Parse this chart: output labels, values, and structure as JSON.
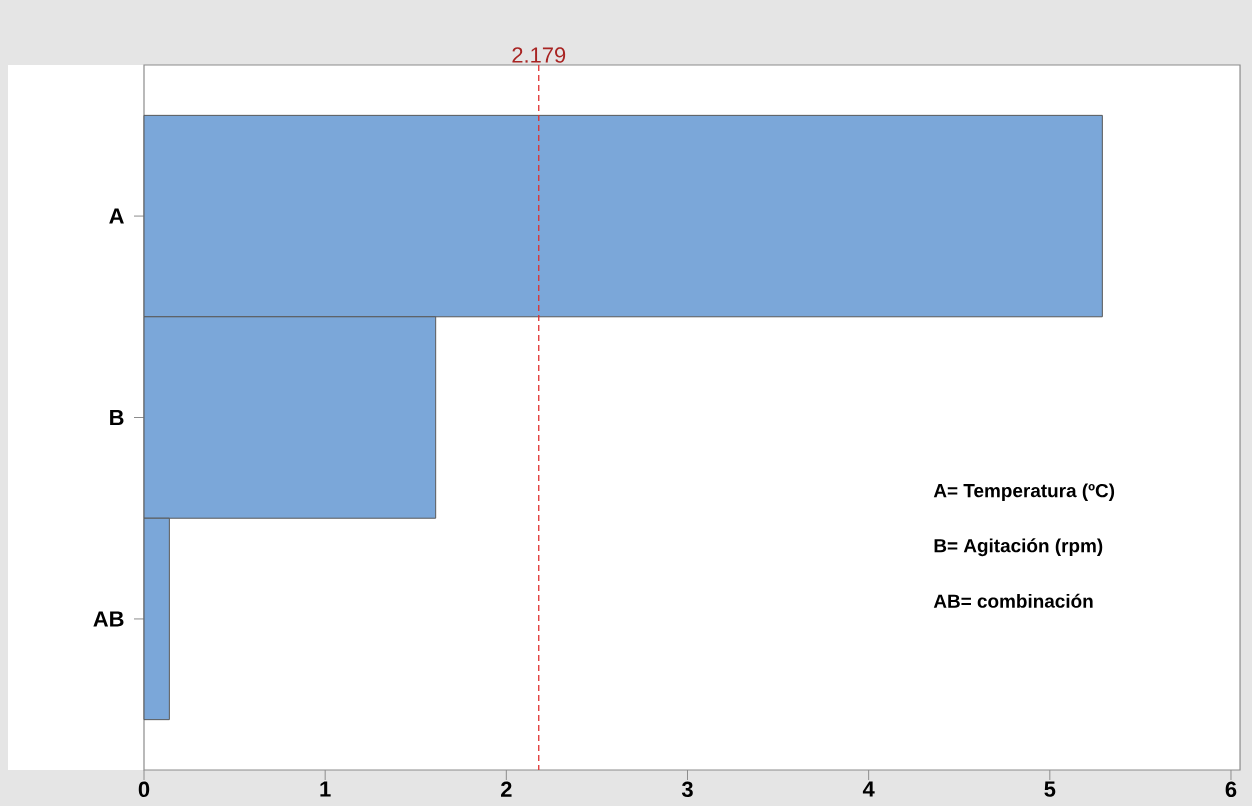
{
  "chart_data": {
    "type": "bar",
    "orientation": "horizontal",
    "categories": [
      "A",
      "B",
      "AB"
    ],
    "values": [
      5.29,
      1.61,
      0.14
    ],
    "color": "#7ba7d9",
    "xlim": [
      0,
      6.05
    ],
    "xticks": [
      0,
      1,
      2,
      3,
      4,
      5,
      6
    ],
    "ref_lines": [
      {
        "axis": "x",
        "value": 2.179,
        "label": "2.179",
        "color": "#e0302f",
        "line_style": "dashed"
      }
    ],
    "annotations": [
      "A= Temperatura (ºC)",
      "B= Agitación (rpm)",
      "AB= combinación"
    ]
  }
}
